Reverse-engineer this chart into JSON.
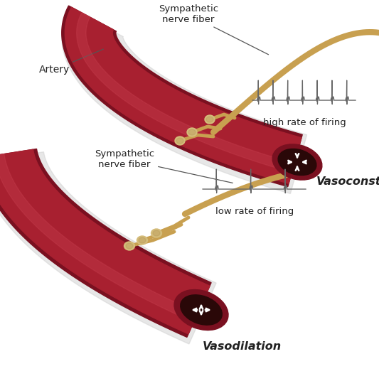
{
  "bg_color": "#ffffff",
  "artery_color_main": "#a82030",
  "artery_color_edge": "#7a1020",
  "artery_color_highlight": "#c84050",
  "artery_shadow_color": "#d0d0d0",
  "nerve_color": "#c8a050",
  "nerve_dark": "#a07828",
  "ganglion_color": "#d4bc7a",
  "ganglion_dark": "#b09050",
  "text_color": "#222222",
  "ecg_color": "#666666",
  "vasoconstriction_label": "Vasoconstriction",
  "vasodilation_label": "Vasodilation",
  "artery_label": "Artery",
  "nerve_label_top": "Sympathetic\nnerve fiber",
  "nerve_label_bottom": "Sympathetic\nnerve fiber",
  "firing_high": "high rate of firing",
  "firing_low": "low rate of firing",
  "figsize": [
    5.33,
    5.36
  ],
  "dpi": 100
}
